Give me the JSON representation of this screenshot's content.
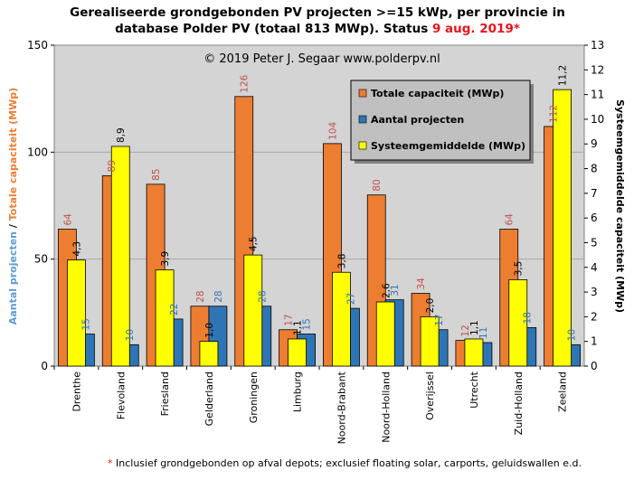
{
  "title_line1": "Gerealiseerde grondgebonden PV projecten >=15 kWp, per provincie in",
  "title_line2_black": "database Polder PV (totaal 813 MWp). Status ",
  "title_line2_red": "9 aug. 2019*",
  "copyright": "© 2019  Peter J. Segaar  www.polderpv.nl",
  "footnote_star": "*",
  "footnote_text": " Inclusief grondgebonden op afval depots; exclusief floating solar, carports, geluidswallen e.d.",
  "ylabel_left_part1": "Aantal projecten",
  "ylabel_left_sep": " / ",
  "ylabel_left_part2": "Totale capaciteit (MWp)",
  "ylabel_right": "Systeemgemiddelde capaciteit (MWp)",
  "colors": {
    "plot_bg": "#d4d4d4",
    "capacity": "#ed7d31",
    "projects": "#2e75b6",
    "average": "#ffff00",
    "label_capacity": "#c0504d",
    "label_projects": "#2e75b6",
    "label_average": "#000000",
    "axis_left_blue": "#5b9bd5",
    "axis_left_orange": "#ed7d31",
    "legend_bg": "#c0c0c0"
  },
  "chart_data": {
    "type": "bar",
    "categories": [
      "Drenthe",
      "Flevoland",
      "Friesland",
      "Gelderland",
      "Groningen",
      "Limburg",
      "Noord-Brabant",
      "Noord-Holland",
      "Overijssel",
      "Utrecht",
      "Zuid-Holland",
      "Zeeland"
    ],
    "series": [
      {
        "name": "Totale capaciteit (MWp)",
        "axis": "left",
        "values": [
          64,
          89,
          85,
          28,
          126,
          17,
          104,
          80,
          34,
          12,
          64,
          112
        ],
        "labels": [
          "64",
          "89",
          "85",
          "28",
          "126",
          "17",
          "104",
          "80",
          "34",
          "12",
          "64",
          "112"
        ]
      },
      {
        "name": "Aantal projecten",
        "axis": "left",
        "values": [
          15,
          10,
          22,
          28,
          28,
          15,
          27,
          31,
          17,
          11,
          18,
          10
        ],
        "labels": [
          "15",
          "10",
          "22",
          "28",
          "28",
          "15",
          "27",
          "31",
          "17",
          "11",
          "18",
          "10"
        ]
      },
      {
        "name": "Systeemgemiddelde (MWp)",
        "axis": "right",
        "values": [
          4.3,
          8.9,
          3.9,
          1.0,
          4.5,
          1.1,
          3.8,
          2.6,
          2.0,
          1.1,
          3.5,
          11.2
        ],
        "labels": [
          "4,3",
          "8,9",
          "3,9",
          "1,0",
          "4,5",
          "1,1",
          "3,8",
          "2,6",
          "2,0",
          "1,1",
          "3,5",
          "11,2"
        ]
      }
    ],
    "ylim_left": [
      0,
      150
    ],
    "yticks_left": [
      0,
      50,
      100,
      150
    ],
    "ylim_right": [
      0,
      13
    ],
    "yticks_right": [
      0,
      1,
      2,
      3,
      4,
      5,
      6,
      7,
      8,
      9,
      10,
      11,
      12,
      13
    ],
    "grid": true,
    "legend_position": "top-right"
  }
}
